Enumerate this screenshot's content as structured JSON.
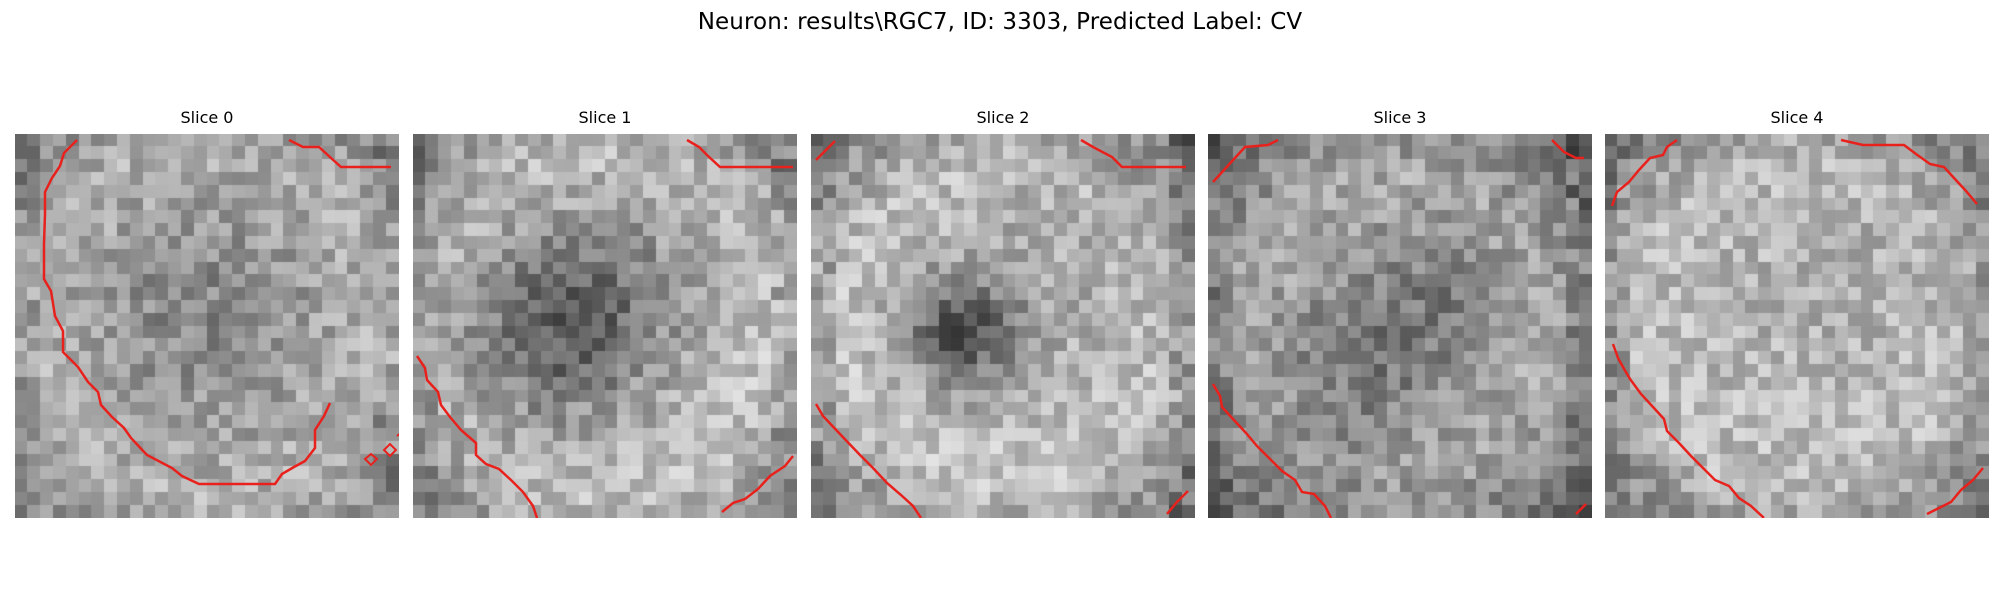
{
  "figure": {
    "title": "Neuron: results\\RGC7, ID: 3303, Predicted Label: CV"
  },
  "slices": [
    {
      "title": "Slice 0",
      "image_description_name": "grayscale-micrograph-slice-0",
      "contour_color": "#e8211d"
    },
    {
      "title": "Slice 1",
      "image_description_name": "grayscale-micrograph-slice-1",
      "contour_color": "#e8211d"
    },
    {
      "title": "Slice 2",
      "image_description_name": "grayscale-micrograph-slice-2",
      "contour_color": "#e8211d"
    },
    {
      "title": "Slice 3",
      "image_description_name": "grayscale-micrograph-slice-3",
      "contour_color": "#e8211d"
    },
    {
      "title": "Slice 4",
      "image_description_name": "grayscale-micrograph-slice-4",
      "contour_color": "#e8211d"
    }
  ]
}
